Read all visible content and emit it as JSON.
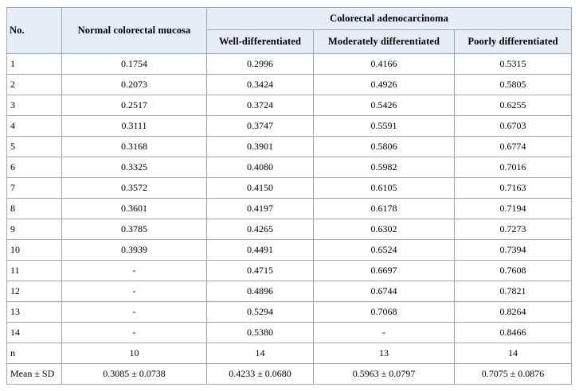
{
  "table": {
    "headers": {
      "no": "No.",
      "normal": "Normal colorectal mucosa",
      "group": "Colorectal adenocarcinoma",
      "sub": [
        "Well-differentiated",
        "Moderately differentiated",
        "Poorly differentiated"
      ]
    },
    "rows": [
      [
        "1",
        "0.1754",
        "0.2996",
        "0.4166",
        "0.5315"
      ],
      [
        "2",
        "0.2073",
        "0.3424",
        "0.4926",
        "0.5805"
      ],
      [
        "3",
        "0.2517",
        "0.3724",
        "0.5426",
        "0.6255"
      ],
      [
        "4",
        "0.3111",
        "0.3747",
        "0.5591",
        "0.6703"
      ],
      [
        "5",
        "0.3168",
        "0.3901",
        "0.5806",
        "0.6774"
      ],
      [
        "6",
        "0.3325",
        "0.4080",
        "0.5982",
        "0.7016"
      ],
      [
        "7",
        "0.3572",
        "0.4150",
        "0.6105",
        "0.7163"
      ],
      [
        "8",
        "0.3601",
        "0.4197",
        "0.6178",
        "0.7194"
      ],
      [
        "9",
        "0.3785",
        "0.4265",
        "0.6302",
        "0.7273"
      ],
      [
        "10",
        "0.3939",
        "0.4491",
        "0.6524",
        "0.7394"
      ],
      [
        "11",
        "-",
        "0.4715",
        "0.6697",
        "0.7608"
      ],
      [
        "12",
        "-",
        "0.4896",
        "0.6744",
        "0.7821"
      ],
      [
        "13",
        "-",
        "0.5294",
        "0.7068",
        "0.8264"
      ],
      [
        "14",
        "-",
        "0.5380",
        "-",
        "0.8466"
      ],
      [
        "n",
        "10",
        "14",
        "13",
        "14"
      ],
      [
        "Mean ± SD",
        "0.3085 ± 0.0738",
        "0.4233 ± 0.0680",
        "0.5963 ± 0.0797",
        "0.7075 ± 0.0876"
      ]
    ]
  },
  "colors": {
    "header_bg": "#e6edf6",
    "border": "#9aa6b2"
  }
}
